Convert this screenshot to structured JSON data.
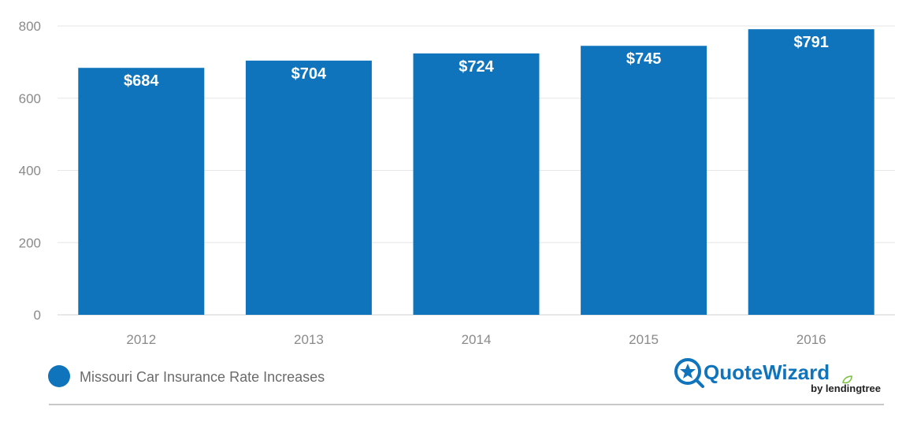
{
  "chart_data": {
    "type": "bar",
    "categories": [
      "2012",
      "2013",
      "2014",
      "2015",
      "2016"
    ],
    "series": [
      {
        "name": "Missouri Car Insurance Rate Increases",
        "values": [
          684,
          704,
          724,
          745,
          791
        ],
        "color": "#1074bc"
      }
    ],
    "data_labels": [
      "$684",
      "$704",
      "$724",
      "$745",
      "$791"
    ],
    "ylim": [
      0,
      800
    ],
    "y_ticks": [
      "0",
      "200",
      "400",
      "600",
      "800"
    ],
    "grid": true,
    "legend_position": "bottom-left"
  },
  "logo": {
    "brand": "QuoteWizard",
    "byline": "by lendingtree"
  },
  "colors": {
    "bar": "#1074bc",
    "grid": "#e6e6e6",
    "tick_text": "#8a8a8a",
    "legend_text": "#6b6b6b",
    "logo_blue": "#1074bc",
    "logo_green": "#7cc242"
  }
}
